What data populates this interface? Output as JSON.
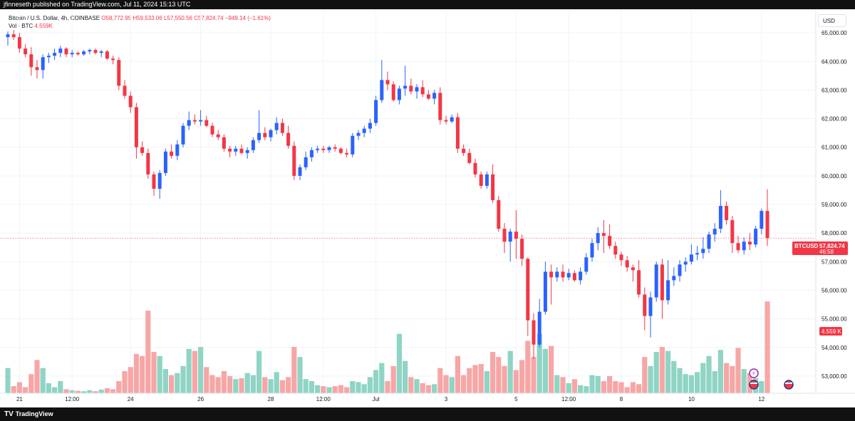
{
  "header": {
    "publisher_text": "jfinneseth published on TradingView.com, Jul 11, 2024 15:13 UTC"
  },
  "legend": {
    "symbol_line": "Bitcoin / U.S. Dollar, 4h, COINBASE",
    "open": "O58,772.99",
    "high": "H59,533.06",
    "low": "L57,550.56",
    "close": "C57,824.74",
    "change": "−949.14 (−1.61%)",
    "vol_label": "Vol · BTC",
    "vol_value": "4.559K"
  },
  "currency_button": "USD",
  "price_tag": {
    "symbol": "BTCUSD",
    "price": "57,824.74",
    "countdown": "46:58"
  },
  "volume_tag": "4.559 K",
  "footer": {
    "brand": "TradingView",
    "logo_glyph": "TV"
  },
  "colors": {
    "up": "#2962ff",
    "down": "#f23645",
    "vol_up": "#8fd4c4",
    "vol_down": "#f7a6a6"
  },
  "chart_data": {
    "type": "candlestick",
    "symbol": "BTCUSD",
    "timeframe": "4h",
    "y_axis": {
      "range": [
        52400,
        65800
      ],
      "ticks": [
        "65,000.00",
        "64,000.00",
        "63,000.00",
        "62,000.00",
        "61,000.00",
        "60,000.00",
        "59,000.00",
        "58,000.00",
        "57,000.00",
        "56,000.00",
        "55,000.00",
        "54,000.00",
        "53,000.00"
      ],
      "tick_values": [
        65000,
        64000,
        63000,
        62000,
        61000,
        60000,
        59000,
        58000,
        57000,
        56000,
        55000,
        54000,
        53000
      ]
    },
    "x_axis": {
      "labels": [
        {
          "text": "21",
          "bar": 2
        },
        {
          "text": "12:00",
          "bar": 11
        },
        {
          "text": "24",
          "bar": 21
        },
        {
          "text": "26",
          "bar": 33
        },
        {
          "text": "28",
          "bar": 45
        },
        {
          "text": "12:00",
          "bar": 54
        },
        {
          "text": "Jul",
          "bar": 63
        },
        {
          "text": "3",
          "bar": 75
        },
        {
          "text": "5",
          "bar": 87
        },
        {
          "text": "12:00",
          "bar": 96
        },
        {
          "text": "8",
          "bar": 105
        },
        {
          "text": "10",
          "bar": 117
        },
        {
          "text": "12",
          "bar": 129
        }
      ]
    },
    "last_price": 57824.74,
    "candles": [
      {
        "o": 64850,
        "h": 65050,
        "l": 64550,
        "c": 64950,
        "v": 1.25
      },
      {
        "o": 64950,
        "h": 65100,
        "l": 64750,
        "c": 64850,
        "v": 0.35
      },
      {
        "o": 64850,
        "h": 65000,
        "l": 64300,
        "c": 64450,
        "v": 0.55
      },
      {
        "o": 64450,
        "h": 64600,
        "l": 64150,
        "c": 64250,
        "v": 0.3
      },
      {
        "o": 64250,
        "h": 64500,
        "l": 63500,
        "c": 63800,
        "v": 0.95
      },
      {
        "o": 63800,
        "h": 64050,
        "l": 63400,
        "c": 63700,
        "v": 1.65
      },
      {
        "o": 63700,
        "h": 64250,
        "l": 63400,
        "c": 64150,
        "v": 1.25
      },
      {
        "o": 64150,
        "h": 64300,
        "l": 63950,
        "c": 64200,
        "v": 0.5
      },
      {
        "o": 64200,
        "h": 64450,
        "l": 64050,
        "c": 64300,
        "v": 0.3
      },
      {
        "o": 64300,
        "h": 64550,
        "l": 64150,
        "c": 64450,
        "v": 0.6
      },
      {
        "o": 64450,
        "h": 64500,
        "l": 64150,
        "c": 64250,
        "v": 0.2
      },
      {
        "o": 64250,
        "h": 64400,
        "l": 64150,
        "c": 64300,
        "v": 0.15
      },
      {
        "o": 64300,
        "h": 64350,
        "l": 64200,
        "c": 64250,
        "v": 0.12
      },
      {
        "o": 64250,
        "h": 64400,
        "l": 64200,
        "c": 64350,
        "v": 0.1
      },
      {
        "o": 64350,
        "h": 64450,
        "l": 64250,
        "c": 64400,
        "v": 0.15
      },
      {
        "o": 64400,
        "h": 64450,
        "l": 64250,
        "c": 64300,
        "v": 0.1
      },
      {
        "o": 64300,
        "h": 64400,
        "l": 64150,
        "c": 64350,
        "v": 0.18
      },
      {
        "o": 64350,
        "h": 64400,
        "l": 64050,
        "c": 64100,
        "v": 0.25
      },
      {
        "o": 64100,
        "h": 64200,
        "l": 63900,
        "c": 64050,
        "v": 0.2
      },
      {
        "o": 64050,
        "h": 64150,
        "l": 63000,
        "c": 63150,
        "v": 0.6
      },
      {
        "o": 63150,
        "h": 63350,
        "l": 62700,
        "c": 62800,
        "v": 1.1
      },
      {
        "o": 62800,
        "h": 62950,
        "l": 62200,
        "c": 62400,
        "v": 1.3
      },
      {
        "o": 62400,
        "h": 62550,
        "l": 60600,
        "c": 61000,
        "v": 1.95
      },
      {
        "o": 61000,
        "h": 61200,
        "l": 60700,
        "c": 60800,
        "v": 1.85
      },
      {
        "o": 60800,
        "h": 60950,
        "l": 59900,
        "c": 60050,
        "v": 4.1
      },
      {
        "o": 60050,
        "h": 60150,
        "l": 59300,
        "c": 59550,
        "v": 2.05
      },
      {
        "o": 59550,
        "h": 60200,
        "l": 59200,
        "c": 60100,
        "v": 1.85
      },
      {
        "o": 60100,
        "h": 60950,
        "l": 60000,
        "c": 60850,
        "v": 1.2
      },
      {
        "o": 60850,
        "h": 61100,
        "l": 60600,
        "c": 60700,
        "v": 0.9
      },
      {
        "o": 60700,
        "h": 61250,
        "l": 60550,
        "c": 61100,
        "v": 1.0
      },
      {
        "o": 61100,
        "h": 61850,
        "l": 61000,
        "c": 61750,
        "v": 1.35
      },
      {
        "o": 61750,
        "h": 62250,
        "l": 61600,
        "c": 61950,
        "v": 2.2
      },
      {
        "o": 61950,
        "h": 62150,
        "l": 61800,
        "c": 61900,
        "v": 2.1
      },
      {
        "o": 61900,
        "h": 62300,
        "l": 61750,
        "c": 61950,
        "v": 2.3
      },
      {
        "o": 61950,
        "h": 62100,
        "l": 61700,
        "c": 61750,
        "v": 1.3
      },
      {
        "o": 61750,
        "h": 61850,
        "l": 61350,
        "c": 61450,
        "v": 0.9
      },
      {
        "o": 61450,
        "h": 61600,
        "l": 61250,
        "c": 61350,
        "v": 0.8
      },
      {
        "o": 61350,
        "h": 61450,
        "l": 60850,
        "c": 60950,
        "v": 1.1
      },
      {
        "o": 60950,
        "h": 61050,
        "l": 60650,
        "c": 60850,
        "v": 0.85
      },
      {
        "o": 60850,
        "h": 61050,
        "l": 60700,
        "c": 60950,
        "v": 0.7
      },
      {
        "o": 60950,
        "h": 61100,
        "l": 60750,
        "c": 60800,
        "v": 0.75
      },
      {
        "o": 60800,
        "h": 61000,
        "l": 60600,
        "c": 60900,
        "v": 1.0
      },
      {
        "o": 60900,
        "h": 61350,
        "l": 60800,
        "c": 61250,
        "v": 0.9
      },
      {
        "o": 61250,
        "h": 62300,
        "l": 61150,
        "c": 61500,
        "v": 2.1
      },
      {
        "o": 61500,
        "h": 61700,
        "l": 61250,
        "c": 61350,
        "v": 0.8
      },
      {
        "o": 61350,
        "h": 61650,
        "l": 61200,
        "c": 61600,
        "v": 0.7
      },
      {
        "o": 61600,
        "h": 62050,
        "l": 61450,
        "c": 61850,
        "v": 1.05
      },
      {
        "o": 61850,
        "h": 62000,
        "l": 61400,
        "c": 61500,
        "v": 0.65
      },
      {
        "o": 61500,
        "h": 61750,
        "l": 60950,
        "c": 61050,
        "v": 0.8
      },
      {
        "o": 61050,
        "h": 61200,
        "l": 59850,
        "c": 60000,
        "v": 2.3
      },
      {
        "o": 60000,
        "h": 60400,
        "l": 59850,
        "c": 60300,
        "v": 1.8
      },
      {
        "o": 60300,
        "h": 60850,
        "l": 60200,
        "c": 60650,
        "v": 0.7
      },
      {
        "o": 60650,
        "h": 61000,
        "l": 60500,
        "c": 60900,
        "v": 0.6
      },
      {
        "o": 60900,
        "h": 61050,
        "l": 60800,
        "c": 60950,
        "v": 0.4
      },
      {
        "o": 60950,
        "h": 61050,
        "l": 60800,
        "c": 60900,
        "v": 0.35
      },
      {
        "o": 60900,
        "h": 61050,
        "l": 60800,
        "c": 61000,
        "v": 0.3
      },
      {
        "o": 61000,
        "h": 61100,
        "l": 60850,
        "c": 60950,
        "v": 0.35
      },
      {
        "o": 60950,
        "h": 61000,
        "l": 60750,
        "c": 60800,
        "v": 0.4
      },
      {
        "o": 60800,
        "h": 60950,
        "l": 60650,
        "c": 60750,
        "v": 0.3
      },
      {
        "o": 60750,
        "h": 61500,
        "l": 60650,
        "c": 61400,
        "v": 0.6
      },
      {
        "o": 61400,
        "h": 61600,
        "l": 61250,
        "c": 61500,
        "v": 0.55
      },
      {
        "o": 61500,
        "h": 61750,
        "l": 61350,
        "c": 61650,
        "v": 0.45
      },
      {
        "o": 61650,
        "h": 62000,
        "l": 61500,
        "c": 61850,
        "v": 0.8
      },
      {
        "o": 61850,
        "h": 62800,
        "l": 61750,
        "c": 62650,
        "v": 1.15
      },
      {
        "o": 62650,
        "h": 64050,
        "l": 62550,
        "c": 63350,
        "v": 1.5
      },
      {
        "o": 63350,
        "h": 63650,
        "l": 63000,
        "c": 63200,
        "v": 0.6
      },
      {
        "o": 63200,
        "h": 63300,
        "l": 62600,
        "c": 62650,
        "v": 1.35
      },
      {
        "o": 62650,
        "h": 63150,
        "l": 62500,
        "c": 63050,
        "v": 2.95
      },
      {
        "o": 63050,
        "h": 63850,
        "l": 62800,
        "c": 63150,
        "v": 1.6
      },
      {
        "o": 63150,
        "h": 63400,
        "l": 62850,
        "c": 62950,
        "v": 0.8
      },
      {
        "o": 62950,
        "h": 63200,
        "l": 62700,
        "c": 63100,
        "v": 0.7
      },
      {
        "o": 63100,
        "h": 63350,
        "l": 62750,
        "c": 62850,
        "v": 0.5
      },
      {
        "o": 62850,
        "h": 63000,
        "l": 62650,
        "c": 62700,
        "v": 0.4
      },
      {
        "o": 62700,
        "h": 63000,
        "l": 62500,
        "c": 62900,
        "v": 0.45
      },
      {
        "o": 62900,
        "h": 63100,
        "l": 61800,
        "c": 61950,
        "v": 1.25
      },
      {
        "o": 61950,
        "h": 62100,
        "l": 61800,
        "c": 61900,
        "v": 0.9
      },
      {
        "o": 61900,
        "h": 62150,
        "l": 61850,
        "c": 62050,
        "v": 0.8
      },
      {
        "o": 62050,
        "h": 62200,
        "l": 60800,
        "c": 60950,
        "v": 1.85
      },
      {
        "o": 60950,
        "h": 61100,
        "l": 60700,
        "c": 60800,
        "v": 0.9
      },
      {
        "o": 60800,
        "h": 60950,
        "l": 60400,
        "c": 60450,
        "v": 1.25
      },
      {
        "o": 60450,
        "h": 60600,
        "l": 59950,
        "c": 60050,
        "v": 1.4
      },
      {
        "o": 60050,
        "h": 60150,
        "l": 59550,
        "c": 59650,
        "v": 1.45
      },
      {
        "o": 59650,
        "h": 60150,
        "l": 59550,
        "c": 60050,
        "v": 1.1
      },
      {
        "o": 60050,
        "h": 60400,
        "l": 59050,
        "c": 59150,
        "v": 2.05
      },
      {
        "o": 59150,
        "h": 59300,
        "l": 58050,
        "c": 58150,
        "v": 1.8
      },
      {
        "o": 58150,
        "h": 58350,
        "l": 57300,
        "c": 57700,
        "v": 1.35
      },
      {
        "o": 57700,
        "h": 58150,
        "l": 57000,
        "c": 58050,
        "v": 2.1
      },
      {
        "o": 58050,
        "h": 58800,
        "l": 57100,
        "c": 57800,
        "v": 1.15
      },
      {
        "o": 57800,
        "h": 57950,
        "l": 56850,
        "c": 57100,
        "v": 1.65
      },
      {
        "o": 57100,
        "h": 57150,
        "l": 54400,
        "c": 54950,
        "v": 2.6
      },
      {
        "o": 54950,
        "h": 55200,
        "l": 53600,
        "c": 54100,
        "v": 1.8
      },
      {
        "o": 54100,
        "h": 55700,
        "l": 54000,
        "c": 55250,
        "v": 2.95
      },
      {
        "o": 55250,
        "h": 57000,
        "l": 55150,
        "c": 56650,
        "v": 2.2
      },
      {
        "o": 56650,
        "h": 56900,
        "l": 55500,
        "c": 56450,
        "v": 2.35
      },
      {
        "o": 56450,
        "h": 56800,
        "l": 56300,
        "c": 56650,
        "v": 0.9
      },
      {
        "o": 56650,
        "h": 56900,
        "l": 56300,
        "c": 56450,
        "v": 0.8
      },
      {
        "o": 56450,
        "h": 56750,
        "l": 56350,
        "c": 56600,
        "v": 0.5
      },
      {
        "o": 56600,
        "h": 56700,
        "l": 56300,
        "c": 56350,
        "v": 0.7
      },
      {
        "o": 56350,
        "h": 56800,
        "l": 56200,
        "c": 56650,
        "v": 0.4
      },
      {
        "o": 56650,
        "h": 57300,
        "l": 56550,
        "c": 57150,
        "v": 0.35
      },
      {
        "o": 57150,
        "h": 57800,
        "l": 57000,
        "c": 57650,
        "v": 0.9
      },
      {
        "o": 57650,
        "h": 58200,
        "l": 57400,
        "c": 58000,
        "v": 0.85
      },
      {
        "o": 58000,
        "h": 58450,
        "l": 57300,
        "c": 57900,
        "v": 0.6
      },
      {
        "o": 57900,
        "h": 58300,
        "l": 57450,
        "c": 57550,
        "v": 0.85
      },
      {
        "o": 57550,
        "h": 57700,
        "l": 57100,
        "c": 57250,
        "v": 0.6
      },
      {
        "o": 57250,
        "h": 57350,
        "l": 56850,
        "c": 57050,
        "v": 0.55
      },
      {
        "o": 57050,
        "h": 57200,
        "l": 56650,
        "c": 56800,
        "v": 0.3
      },
      {
        "o": 56800,
        "h": 56900,
        "l": 56300,
        "c": 56700,
        "v": 0.55
      },
      {
        "o": 56700,
        "h": 57050,
        "l": 55750,
        "c": 55850,
        "v": 0.45
      },
      {
        "o": 55850,
        "h": 56100,
        "l": 54600,
        "c": 55100,
        "v": 1.8
      },
      {
        "o": 55100,
        "h": 55950,
        "l": 54350,
        "c": 55750,
        "v": 1.35
      },
      {
        "o": 55750,
        "h": 57000,
        "l": 55600,
        "c": 56900,
        "v": 2.05
      },
      {
        "o": 56900,
        "h": 57100,
        "l": 55000,
        "c": 55650,
        "v": 2.3
      },
      {
        "o": 55650,
        "h": 57050,
        "l": 55500,
        "c": 56350,
        "v": 2.1
      },
      {
        "o": 56350,
        "h": 56800,
        "l": 56150,
        "c": 56500,
        "v": 1.6
      },
      {
        "o": 56500,
        "h": 57050,
        "l": 56300,
        "c": 56900,
        "v": 1.25
      },
      {
        "o": 56900,
        "h": 57150,
        "l": 56650,
        "c": 57000,
        "v": 0.95
      },
      {
        "o": 57000,
        "h": 57600,
        "l": 56900,
        "c": 57250,
        "v": 0.9
      },
      {
        "o": 57250,
        "h": 57550,
        "l": 57050,
        "c": 57300,
        "v": 1.05
      },
      {
        "o": 57300,
        "h": 57850,
        "l": 57100,
        "c": 57450,
        "v": 1.5
      },
      {
        "o": 57450,
        "h": 58050,
        "l": 57300,
        "c": 57950,
        "v": 1.85
      },
      {
        "o": 57950,
        "h": 58350,
        "l": 57700,
        "c": 58150,
        "v": 1.1
      },
      {
        "o": 58150,
        "h": 59500,
        "l": 58000,
        "c": 58950,
        "v": 2.15
      },
      {
        "o": 58950,
        "h": 59100,
        "l": 58300,
        "c": 58450,
        "v": 1.5
      },
      {
        "o": 58450,
        "h": 58600,
        "l": 57300,
        "c": 57650,
        "v": 1.35
      },
      {
        "o": 57650,
        "h": 57900,
        "l": 57300,
        "c": 57400,
        "v": 2.25
      },
      {
        "o": 57400,
        "h": 57850,
        "l": 57250,
        "c": 57700,
        "v": 1.2
      },
      {
        "o": 57700,
        "h": 58000,
        "l": 57400,
        "c": 57600,
        "v": 1.0
      },
      {
        "o": 57600,
        "h": 58250,
        "l": 57500,
        "c": 58150,
        "v": 0.75
      },
      {
        "o": 58150,
        "h": 58850,
        "l": 57950,
        "c": 58773,
        "v": 0.6
      },
      {
        "o": 58773,
        "h": 59533,
        "l": 57550,
        "c": 57825,
        "v": 4.559
      }
    ]
  }
}
